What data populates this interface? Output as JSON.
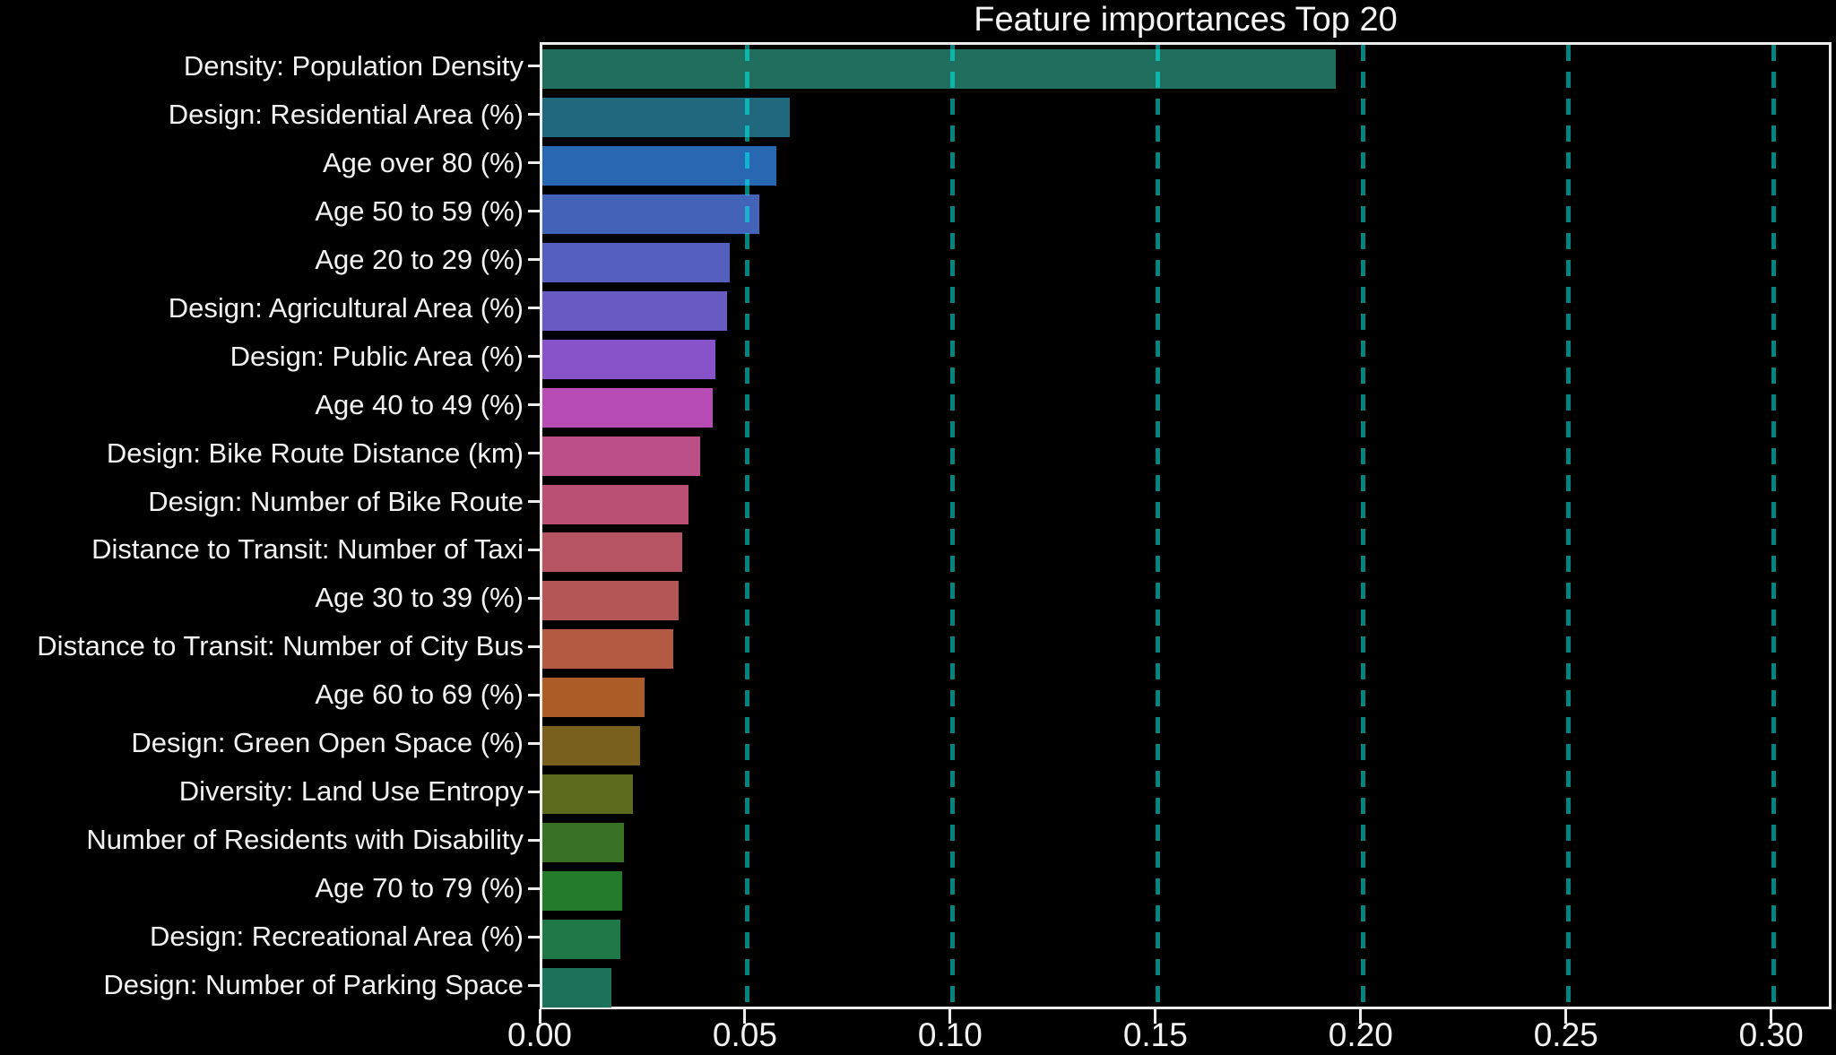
{
  "chart_data": {
    "type": "bar",
    "orientation": "horizontal",
    "title": "Feature importances Top 20",
    "xlabel": "",
    "ylabel": "",
    "categories": [
      "Density: Population Density",
      "Design: Residential Area (%)",
      "Age over 80 (%)",
      "Age 50 to 59 (%)",
      "Age 20 to 29 (%)",
      "Design: Agricultural Area (%)",
      "Design: Public Area (%)",
      "Age 40 to 49 (%)",
      "Design: Bike Route Distance (km)",
      "Design: Number of Bike Route",
      "Distance to Transit: Number of Taxi",
      "Age 30 to 39 (%)",
      "Distance to Transit: Number of City Bus",
      "Age 60 to 69 (%)",
      "Design: Green Open Space (%)",
      "Diversity: Land Use Entropy",
      "Number of Residents with Disability",
      "Age 70 to 79 (%)",
      "Design: Recreational Area (%)",
      "Design: Number of Parking Space"
    ],
    "values": [
      0.1933,
      0.0603,
      0.057,
      0.0528,
      0.0457,
      0.045,
      0.0421,
      0.0416,
      0.0384,
      0.0357,
      0.0341,
      0.0333,
      0.0319,
      0.025,
      0.0238,
      0.022,
      0.0199,
      0.0194,
      0.0189,
      0.0169
    ],
    "bar_colors": [
      "#1f6e5e",
      "#20687d",
      "#2868b2",
      "#4263b8",
      "#5560be",
      "#685ac3",
      "#8852c8",
      "#b64cb4",
      "#bc4e88",
      "#ba5074",
      "#b65464",
      "#b45656",
      "#b25a42",
      "#ac5c26",
      "#7a601e",
      "#5c6a1e",
      "#387224",
      "#247c2a",
      "#207848",
      "#1c725a"
    ],
    "xlim": [
      0,
      0.3147
    ],
    "xticks": [
      0.0,
      0.05,
      0.1,
      0.15,
      0.2,
      0.25,
      0.3
    ],
    "xtick_labels": [
      "0.00",
      "0.05",
      "0.10",
      "0.15",
      "0.20",
      "0.25",
      "0.30"
    ],
    "grid": "vertical dashed, drawn over bars, at every x tick except 0",
    "grid_color": "#00b8b2",
    "background_color": "#000000",
    "text_color": "#f2f2f2",
    "spine_color": "#ececec",
    "legend": "none"
  }
}
